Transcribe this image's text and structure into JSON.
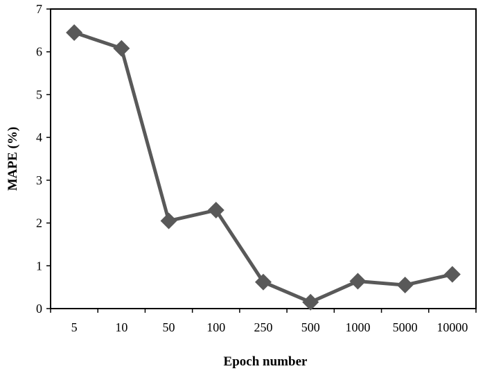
{
  "chart_data": {
    "type": "line",
    "title": "",
    "xlabel": "Epoch number",
    "ylabel": "MAPE (%)",
    "categories": [
      "5",
      "10",
      "50",
      "100",
      "250",
      "500",
      "1000",
      "5000",
      "10000"
    ],
    "series": [
      {
        "values": [
          6.45,
          6.08,
          2.05,
          2.3,
          0.62,
          0.15,
          0.64,
          0.55,
          0.8
        ]
      }
    ],
    "ylim": [
      0,
      7
    ],
    "yticks": [
      0,
      1,
      2,
      3,
      4,
      5,
      6,
      7
    ],
    "grid": false,
    "legend": "none",
    "marker": "diamond",
    "line_color": "#595959",
    "marker_color": "#595959",
    "frame_color": "#000000"
  }
}
